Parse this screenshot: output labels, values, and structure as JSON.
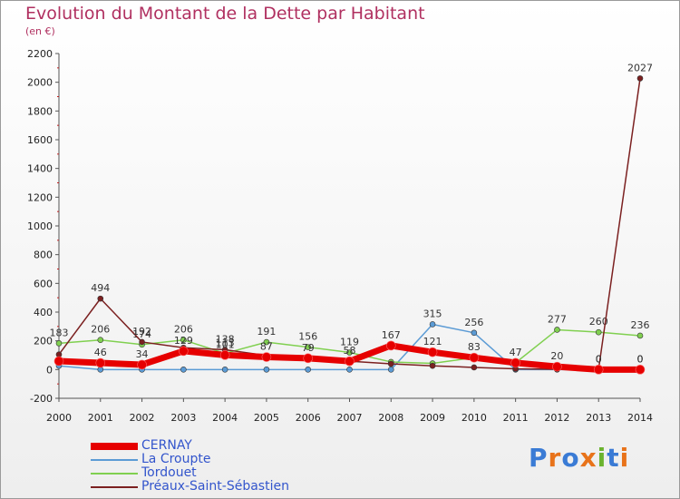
{
  "header": {
    "title": "Evolution du Montant de la Dette par Habitant",
    "unit": "(en €)"
  },
  "logo": {
    "text": "Proxiti",
    "letters": [
      "P",
      "r",
      "o",
      "x",
      "i",
      "t",
      "i"
    ],
    "colors": [
      "#3a7bd5",
      "#e8731a",
      "#3a7bd5",
      "#e8731a",
      "#6bb32e",
      "#3a7bd5",
      "#e8731a"
    ]
  },
  "chart_data": {
    "type": "line",
    "x": [
      2000,
      2001,
      2002,
      2003,
      2004,
      2005,
      2006,
      2007,
      2008,
      2009,
      2010,
      2011,
      2012,
      2013,
      2014
    ],
    "ylim": [
      -200,
      2200
    ],
    "yticks": [
      -200,
      0,
      200,
      400,
      600,
      800,
      1000,
      1200,
      1400,
      1600,
      1800,
      2000,
      2200
    ],
    "grid": false,
    "legend_position": "bottom",
    "series": [
      {
        "name": "CERNAY",
        "color": "#e60000",
        "values": [
          59,
          46,
          34,
          129,
          101,
          87,
          79,
          58,
          167,
          121,
          83,
          47,
          20,
          0,
          0
        ],
        "labels": [
          "",
          "46",
          "34",
          "129",
          "101",
          "87",
          "79",
          "58",
          "167",
          "121",
          "83",
          "47",
          "20",
          "0",
          "0"
        ]
      },
      {
        "name": "La Croupte",
        "color": "#5b9bd5",
        "values": [
          26,
          0,
          0,
          0,
          0,
          0,
          0,
          0,
          0,
          315,
          256,
          0,
          0,
          0,
          0
        ],
        "labels": [
          "",
          "",
          "",
          "",
          "",
          "",
          "",
          "",
          "",
          "315",
          "256",
          "",
          "",
          "0",
          "0"
        ]
      },
      {
        "name": "Tordouet",
        "color": "#80d050",
        "values": [
          183,
          206,
          174,
          206,
          113,
          191,
          156,
          119,
          53,
          43,
          83,
          47,
          277,
          260,
          236
        ],
        "labels": [
          "183",
          "206",
          "174",
          "206",
          "113",
          "191",
          "156",
          "119",
          "",
          "",
          "",
          "",
          "277",
          "260",
          "236"
        ]
      },
      {
        "name": "Préaux-Saint-Sébastien",
        "color": "#7b2020",
        "values": [
          105,
          494,
          192,
          152,
          138,
          98,
          73,
          58,
          40,
          26,
          15,
          5,
          2,
          2,
          2027
        ],
        "labels": [
          "",
          "494",
          "192",
          "",
          "138",
          "",
          "",
          "",
          "",
          "",
          "",
          "",
          "",
          "",
          "2027"
        ]
      }
    ]
  }
}
